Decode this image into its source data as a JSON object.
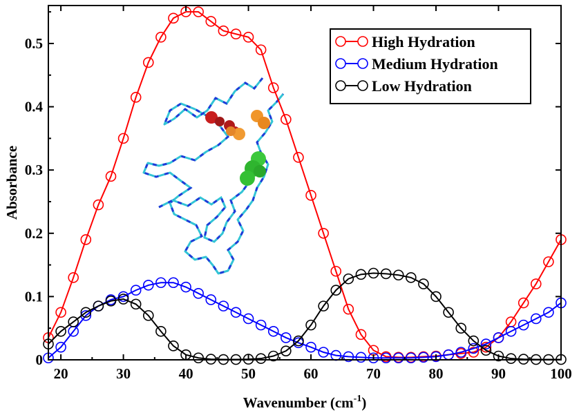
{
  "chart_data": {
    "type": "line",
    "xlabel": "Wavenumber (cm",
    "xlabel_sup": "-1",
    "xlabel_close": ")",
    "ylabel": "Absorbance",
    "xlim": [
      18,
      100
    ],
    "ylim": [
      0,
      0.56
    ],
    "x_ticks": [
      20,
      30,
      40,
      50,
      60,
      70,
      80,
      90,
      100
    ],
    "x_tick_labels": [
      "20",
      "30",
      "40",
      "50",
      "60",
      "70",
      "80",
      "90",
      "100"
    ],
    "y_ticks": [
      0,
      0.1,
      0.2,
      0.3,
      0.4,
      0.5
    ],
    "y_tick_labels": [
      "0",
      "0.1",
      "0.2",
      "0.3",
      "0.4",
      "0.5"
    ],
    "grid": false,
    "legend_position": "top-right",
    "inset": "protein ribbon structure (cyan/blue) with red, orange and green residue spheres",
    "series": [
      {
        "name": "High Hydration",
        "color": "#ff0000",
        "x": [
          18,
          20,
          22,
          24,
          26,
          28,
          30,
          32,
          34,
          36,
          38,
          40,
          42,
          44,
          46,
          48,
          50,
          52,
          54,
          56,
          58,
          60,
          62,
          64,
          66,
          68,
          70,
          72,
          74,
          76,
          78,
          80,
          82,
          84,
          86,
          88,
          90,
          92,
          94,
          96,
          98,
          100
        ],
        "y": [
          0.035,
          0.075,
          0.13,
          0.19,
          0.245,
          0.29,
          0.35,
          0.415,
          0.47,
          0.51,
          0.54,
          0.55,
          0.55,
          0.535,
          0.52,
          0.515,
          0.51,
          0.49,
          0.43,
          0.38,
          0.32,
          0.26,
          0.2,
          0.14,
          0.08,
          0.04,
          0.015,
          0.005,
          0.004,
          0.004,
          0.005,
          0.006,
          0.008,
          0.01,
          0.012,
          0.02,
          0.035,
          0.06,
          0.09,
          0.12,
          0.155,
          0.19
        ]
      },
      {
        "name": "Medium Hydration",
        "color": "#0000ff",
        "x": [
          18,
          20,
          22,
          24,
          26,
          28,
          30,
          32,
          34,
          36,
          38,
          40,
          42,
          44,
          46,
          48,
          50,
          52,
          54,
          56,
          58,
          60,
          62,
          64,
          66,
          68,
          70,
          72,
          74,
          76,
          78,
          80,
          82,
          84,
          86,
          88,
          90,
          92,
          94,
          96,
          98,
          100
        ],
        "y": [
          0.003,
          0.02,
          0.045,
          0.07,
          0.085,
          0.095,
          0.1,
          0.11,
          0.118,
          0.122,
          0.122,
          0.115,
          0.105,
          0.095,
          0.085,
          0.075,
          0.065,
          0.055,
          0.045,
          0.035,
          0.027,
          0.02,
          0.012,
          0.007,
          0.005,
          0.004,
          0.003,
          0.003,
          0.003,
          0.003,
          0.004,
          0.005,
          0.008,
          0.012,
          0.018,
          0.025,
          0.035,
          0.045,
          0.055,
          0.065,
          0.075,
          0.09
        ]
      },
      {
        "name": "Low Hydration",
        "color": "#000000",
        "x": [
          18,
          20,
          22,
          24,
          26,
          28,
          30,
          32,
          34,
          36,
          38,
          40,
          42,
          44,
          46,
          48,
          50,
          52,
          54,
          56,
          58,
          60,
          62,
          64,
          66,
          68,
          70,
          72,
          74,
          76,
          78,
          80,
          82,
          84,
          86,
          88,
          90,
          92,
          94,
          96,
          98,
          100
        ],
        "y": [
          0.025,
          0.045,
          0.06,
          0.075,
          0.085,
          0.093,
          0.096,
          0.088,
          0.07,
          0.045,
          0.022,
          0.008,
          0.003,
          0.001,
          0.0005,
          0.0005,
          0.001,
          0.002,
          0.006,
          0.014,
          0.03,
          0.055,
          0.085,
          0.11,
          0.128,
          0.135,
          0.137,
          0.136,
          0.134,
          0.13,
          0.12,
          0.1,
          0.075,
          0.05,
          0.03,
          0.015,
          0.006,
          0.002,
          0.001,
          0.0005,
          0.0005,
          0.0005
        ]
      }
    ]
  }
}
